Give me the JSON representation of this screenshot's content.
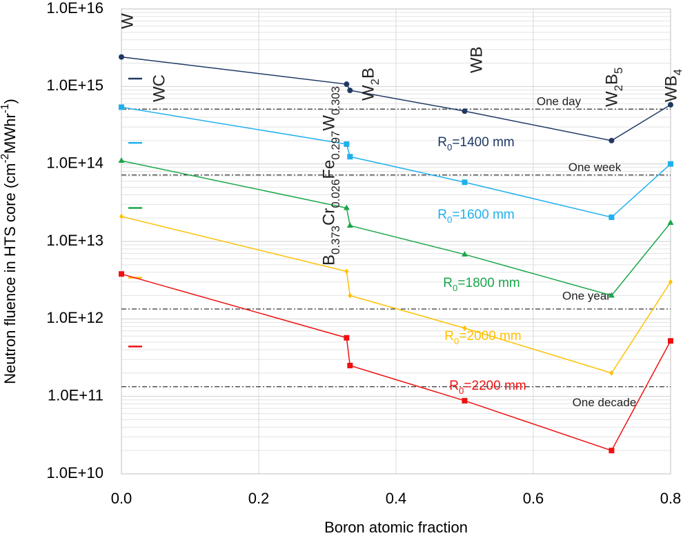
{
  "chart_data": {
    "type": "line",
    "y_scale": "log",
    "grid": true,
    "minor_grid": true,
    "x_label": "Boron atomic fraction",
    "y_label": "Neutron fluence in HTS core (cm-2MWhr-1)",
    "xlim": [
      0,
      0.8
    ],
    "xticks": [
      {
        "value": 0,
        "label": "0.0"
      },
      0.2,
      0.4,
      0.6,
      0.8
    ],
    "ylim": [
      10000000000.0,
      1e+16
    ],
    "yticks": [
      {
        "value": 10000000000.0,
        "label": "1.0E+10"
      },
      {
        "value": 100000000000.0,
        "label": "1.0E+11"
      },
      {
        "value": 1000000000000.0,
        "label": "1.0E+12"
      },
      {
        "value": 10000000000000.0,
        "label": "1.0E+13"
      },
      {
        "value": 100000000000000.0,
        "label": "1.0E+14"
      },
      {
        "value": 1000000000000000.0,
        "label": "1.0E+15"
      },
      {
        "value": 1e+16,
        "label": "1.0E+16"
      }
    ],
    "x": [
      0,
      0.328,
      0.333,
      0.5,
      0.714,
      0.8
    ],
    "series": [
      {
        "name": "R0=1400 mm",
        "color": "#1f3864",
        "marker": "circle",
        "values": [
          2400000000000000.0,
          1070000000000000.0,
          890000000000000.0,
          480000000000000.0,
          200000000000000.0,
          580000000000000.0
        ],
        "wc_value": 1260000000000000.0
      },
      {
        "name": "R0=1600 mm",
        "color": "#1fb0ec",
        "marker": "square",
        "values": [
          540000000000000.0,
          180000000000000.0,
          124000000000000.0,
          58000000000000.0,
          20500000000000.0,
          100000000000000.0
        ],
        "wc_value": 187000000000000.0
      },
      {
        "name": "R0=1800 mm",
        "color": "#1aa64a",
        "marker": "triangle",
        "values": [
          110000000000000.0,
          27000000000000.0,
          16000000000000.0,
          6800000000000.0,
          2000000000000.0,
          17400000000000.0
        ],
        "wc_value": 27000000000000.0
      },
      {
        "name": "R0=2000 mm",
        "color": "#ffc000",
        "marker": "diamond",
        "values": [
          21000000000000.0,
          4100000000000.0,
          2000000000000.0,
          760000000000.0,
          200000000000.0,
          3000000000000.0
        ],
        "wc_value": 3400000000000.0
      },
      {
        "name": "R0=2200 mm",
        "color": "#ee1111",
        "marker": "square",
        "values": [
          3800000000000.0,
          570000000000.0,
          250000000000.0,
          88000000000.0,
          20000000000.0,
          520000000000.0
        ],
        "wc_value": 440000000000.0
      }
    ],
    "reference_lines": [
      {
        "label": "One day",
        "value": 510000000000000.0
      },
      {
        "label": "One week",
        "value": 72000000000000.0
      },
      {
        "label": "One year",
        "value": 1340000000000.0
      },
      {
        "label": "One decade",
        "value": 133000000000.0
      }
    ],
    "compounds": [
      "W",
      "WC",
      "B0.373Cr0.026Fe0.297W0.303",
      "W2B",
      "WB",
      "W2B5",
      "WB4"
    ]
  }
}
